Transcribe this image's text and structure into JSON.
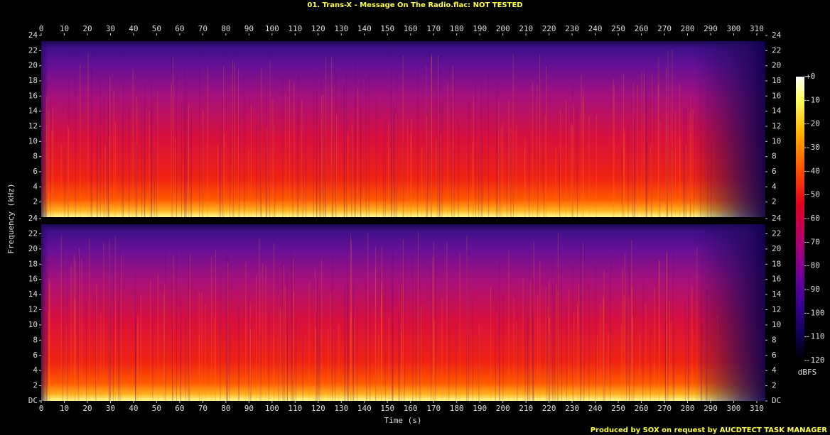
{
  "chart_data": {
    "type": "spectrogram",
    "title": "01. Trans-X - Message On The Radio.flac: NOT TESTED",
    "x_label": "Time (s)",
    "y_label": "Frequency (kHz)",
    "xlim": [
      0,
      313.7
    ],
    "xticks": [
      0,
      10,
      20,
      30,
      40,
      50,
      60,
      70,
      80,
      90,
      100,
      110,
      120,
      130,
      140,
      150,
      160,
      170,
      180,
      190,
      200,
      210,
      220,
      230,
      240,
      250,
      260,
      270,
      280,
      290,
      300,
      310
    ],
    "channels": [
      {
        "ylim": [
          0,
          24
        ],
        "yticks": [
          2,
          4,
          6,
          8,
          10,
          12,
          14,
          16,
          18,
          20,
          22,
          24
        ]
      },
      {
        "ylim": [
          0,
          24
        ],
        "yticks": [
          {
            "value": 0,
            "label": "DC"
          },
          2,
          4,
          6,
          8,
          10,
          12,
          14,
          16,
          18,
          20,
          22,
          24
        ]
      }
    ],
    "colorbar": {
      "label": "dBFS",
      "lim": [
        -120,
        0
      ],
      "ticks": [
        {
          "value": 0,
          "label": "+0"
        },
        -10,
        -20,
        -30,
        -40,
        -50,
        -60,
        -70,
        -80,
        -90,
        -100,
        -110,
        -120
      ]
    },
    "footer": "Produced by SOX on request by AUCDTECT TASK MANAGER"
  }
}
